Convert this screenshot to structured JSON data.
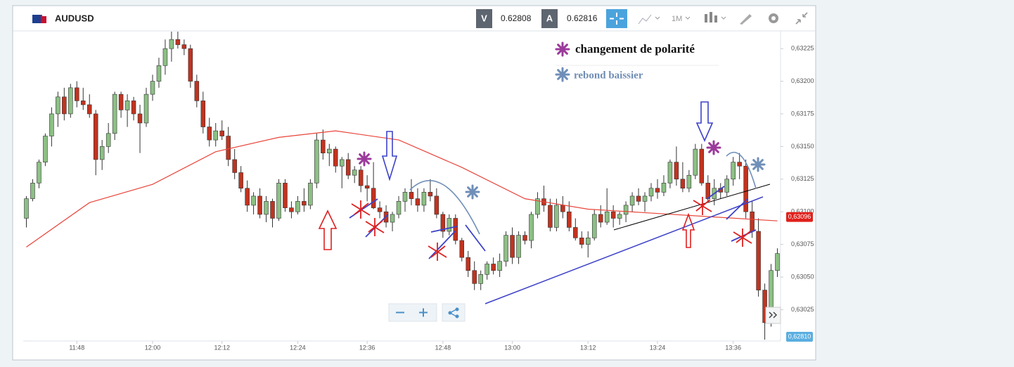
{
  "header": {
    "symbol": "AUDUSD",
    "bid_label": "V",
    "bid": 0.62808,
    "ask_label": "A",
    "ask": 0.62816,
    "timeframe": "1M"
  },
  "chart_data": {
    "type": "candlestick",
    "categories": [
      null,
      null,
      null,
      null,
      null,
      null,
      null,
      null,
      "11:48",
      null,
      null,
      null,
      null,
      null,
      null,
      null,
      null,
      null,
      null,
      null,
      "12:00",
      null,
      null,
      null,
      null,
      null,
      null,
      null,
      null,
      null,
      null,
      "12:12",
      null,
      null,
      null,
      null,
      null,
      null,
      null,
      null,
      null,
      null,
      null,
      "12:24",
      null,
      null,
      null,
      null,
      null,
      null,
      null,
      null,
      null,
      null,
      "12:36",
      null,
      null,
      null,
      null,
      null,
      null,
      null,
      null,
      null,
      null,
      null,
      "12:48",
      null,
      null,
      null,
      null,
      null,
      null,
      null,
      null,
      null,
      null,
      "13:00",
      null,
      null,
      null,
      null,
      null,
      null,
      null,
      null,
      null,
      null,
      null,
      "13:12",
      null,
      null,
      null,
      null,
      null,
      null,
      null,
      null,
      null,
      null,
      "13:24",
      null,
      null,
      null,
      null,
      null,
      null,
      null,
      null,
      null,
      null,
      null,
      "13:36",
      null,
      null,
      null,
      null,
      null,
      null,
      null
    ],
    "open": [
      0.63095,
      0.6311,
      0.63122,
      0.63138,
      0.63158,
      0.63175,
      0.63188,
      0.63175,
      0.63195,
      0.63185,
      0.63182,
      0.63175,
      0.6314,
      0.6315,
      0.6316,
      0.6319,
      0.63178,
      0.63185,
      0.63175,
      0.63168,
      0.6319,
      0.632,
      0.63212,
      0.63225,
      0.63232,
      0.63228,
      0.63225,
      0.632,
      0.63185,
      0.63165,
      0.63155,
      0.63162,
      0.63158,
      0.6314,
      0.6313,
      0.63118,
      0.63105,
      0.63112,
      0.63098,
      0.63108,
      0.63095,
      0.63122,
      0.63103,
      0.631,
      0.63108,
      0.63105,
      0.63122,
      0.63155,
      0.63145,
      0.63148,
      0.63135,
      0.6314,
      0.63128,
      0.63132,
      0.6312,
      0.63118,
      0.63103,
      0.631,
      0.63092,
      0.63098,
      0.63108,
      0.63115,
      0.6311,
      0.63105,
      0.63115,
      0.63112,
      0.63098,
      0.63085,
      0.63095,
      0.63078,
      0.63065,
      0.63055,
      0.63045,
      0.63052,
      0.6306,
      0.63055,
      0.63062,
      0.63082,
      0.63065,
      0.63082,
      0.63078,
      0.63098,
      0.6311,
      0.63105,
      0.63088,
      0.63105,
      0.631,
      0.63088,
      0.6308,
      0.63075,
      0.6308,
      0.63098,
      0.63092,
      0.631,
      0.63095,
      0.63098,
      0.63105,
      0.63112,
      0.63108,
      0.63112,
      0.63118,
      0.63115,
      0.63122,
      0.63138,
      0.63125,
      0.63118,
      0.63128,
      0.63148,
      0.63122,
      0.6311,
      0.63118,
      0.63115,
      0.63125,
      0.63138,
      0.63135,
      0.631,
      0.63085,
      0.6304,
      0.63015,
      0.63055
    ],
    "high": [
      0.63112,
      0.63125,
      0.6314,
      0.6316,
      0.6318,
      0.63192,
      0.63195,
      0.63198,
      0.632,
      0.63195,
      0.6319,
      0.63178,
      0.63155,
      0.63168,
      0.63192,
      0.63192,
      0.6319,
      0.63188,
      0.63182,
      0.63195,
      0.63205,
      0.63218,
      0.63232,
      0.63238,
      0.63238,
      0.63232,
      0.63228,
      0.63205,
      0.63192,
      0.63172,
      0.63168,
      0.6317,
      0.63165,
      0.63148,
      0.63135,
      0.63124,
      0.63115,
      0.63118,
      0.63112,
      0.6311,
      0.63125,
      0.63125,
      0.63108,
      0.63112,
      0.63118,
      0.63125,
      0.6316,
      0.63163,
      0.63152,
      0.6315,
      0.63142,
      0.63145,
      0.63135,
      0.63135,
      0.63128,
      0.63138,
      0.63108,
      0.63105,
      0.631,
      0.63112,
      0.63118,
      0.63125,
      0.63118,
      0.63118,
      0.63125,
      0.63118,
      0.631,
      0.63098,
      0.63098,
      0.6308,
      0.6307,
      0.63062,
      0.63055,
      0.63062,
      0.63065,
      0.63068,
      0.63085,
      0.63088,
      0.63085,
      0.63085,
      0.631,
      0.63115,
      0.6312,
      0.6311,
      0.6311,
      0.63112,
      0.63108,
      0.63095,
      0.63085,
      0.63085,
      0.63102,
      0.63105,
      0.63118,
      0.63105,
      0.631,
      0.63108,
      0.63115,
      0.63118,
      0.63115,
      0.63122,
      0.63125,
      0.63128,
      0.6314,
      0.6315,
      0.63138,
      0.63132,
      0.63152,
      0.63152,
      0.63128,
      0.63125,
      0.63122,
      0.63128,
      0.63142,
      0.63145,
      0.6314,
      0.63108,
      0.63095,
      0.63045,
      0.6306,
      0.63072
    ],
    "low": [
      0.63088,
      0.63108,
      0.63118,
      0.63135,
      0.6315,
      0.63165,
      0.6317,
      0.63172,
      0.6318,
      0.63178,
      0.63172,
      0.63128,
      0.63132,
      0.63145,
      0.63155,
      0.63172,
      0.63165,
      0.6317,
      0.63145,
      0.63165,
      0.63185,
      0.63195,
      0.63205,
      0.63215,
      0.63225,
      0.6322,
      0.63195,
      0.6318,
      0.6316,
      0.6315,
      0.6315,
      0.63155,
      0.63135,
      0.63125,
      0.63115,
      0.631,
      0.63098,
      0.63095,
      0.63092,
      0.63088,
      0.63093,
      0.631,
      0.63095,
      0.63098,
      0.631,
      0.63102,
      0.63118,
      0.6314,
      0.63135,
      0.6313,
      0.63118,
      0.63125,
      0.63122,
      0.63115,
      0.63108,
      0.63102,
      0.63095,
      0.63088,
      0.63085,
      0.63095,
      0.631,
      0.63105,
      0.631,
      0.631,
      0.63108,
      0.63095,
      0.6308,
      0.63082,
      0.63075,
      0.63062,
      0.6305,
      0.6304,
      0.6304,
      0.63048,
      0.63052,
      0.6305,
      0.63058,
      0.6306,
      0.6306,
      0.63075,
      0.63072,
      0.63095,
      0.631,
      0.63085,
      0.63085,
      0.63095,
      0.63085,
      0.63078,
      0.63072,
      0.63065,
      0.63078,
      0.63088,
      0.6309,
      0.63088,
      0.6309,
      0.63092,
      0.631,
      0.63105,
      0.631,
      0.63108,
      0.6311,
      0.63112,
      0.63118,
      0.6312,
      0.63115,
      0.63115,
      0.63125,
      0.6312,
      0.63108,
      0.63105,
      0.6311,
      0.63112,
      0.6312,
      0.63125,
      0.63095,
      0.6308,
      0.63035,
      0.63002,
      0.63012,
      0.6305
    ],
    "close": [
      0.6311,
      0.63122,
      0.63138,
      0.63158,
      0.63175,
      0.63188,
      0.63175,
      0.63195,
      0.63185,
      0.63182,
      0.63175,
      0.6314,
      0.6315,
      0.6316,
      0.6319,
      0.63178,
      0.63185,
      0.63175,
      0.63168,
      0.6319,
      0.632,
      0.63212,
      0.63225,
      0.63232,
      0.63228,
      0.63225,
      0.632,
      0.63185,
      0.63165,
      0.63155,
      0.63162,
      0.63158,
      0.6314,
      0.6313,
      0.63118,
      0.63105,
      0.63112,
      0.63098,
      0.63108,
      0.63095,
      0.63122,
      0.63103,
      0.631,
      0.63108,
      0.63105,
      0.63122,
      0.63155,
      0.63145,
      0.63148,
      0.63135,
      0.6314,
      0.63128,
      0.63132,
      0.6312,
      0.63118,
      0.63103,
      0.631,
      0.63092,
      0.63098,
      0.63108,
      0.63115,
      0.6311,
      0.63105,
      0.63115,
      0.63112,
      0.63098,
      0.63085,
      0.63095,
      0.63078,
      0.63065,
      0.63055,
      0.63045,
      0.63052,
      0.6306,
      0.63055,
      0.63062,
      0.63082,
      0.63065,
      0.63082,
      0.63078,
      0.63098,
      0.6311,
      0.63105,
      0.63088,
      0.63105,
      0.631,
      0.63088,
      0.6308,
      0.63075,
      0.6308,
      0.63098,
      0.63092,
      0.631,
      0.63095,
      0.63098,
      0.63105,
      0.63112,
      0.63108,
      0.63112,
      0.63118,
      0.63115,
      0.63122,
      0.63138,
      0.63125,
      0.63118,
      0.63128,
      0.63148,
      0.63122,
      0.6311,
      0.63118,
      0.63115,
      0.63125,
      0.63138,
      0.63135,
      0.631,
      0.63085,
      0.6304,
      0.63015,
      0.63055,
      0.63068
    ],
    "up_color": "#8cc084",
    "down_color": "#c1331f",
    "overlays": [
      {
        "type": "line",
        "color": "#e8443a",
        "x": [
          0,
          10,
          20,
          30,
          40,
          49,
          59,
          69,
          79,
          89,
          99,
          109,
          119
        ],
        "values": [
          0.63073,
          0.63107,
          0.63121,
          0.63146,
          0.63157,
          0.63162,
          0.63155,
          0.63134,
          0.6311,
          0.63102,
          0.63099,
          0.63096,
          0.63093
        ]
      }
    ],
    "ylim": [
      0.63001,
      0.63238
    ],
    "yticks": [
      {
        "value": 0.63025,
        "label": "0,63025"
      },
      {
        "value": 0.6305,
        "label": "0,63050"
      },
      {
        "value": 0.63075,
        "label": "0,63075"
      },
      {
        "value": 0.631,
        "label": "0,63100"
      },
      {
        "value": 0.63125,
        "label": "0,63125"
      },
      {
        "value": 0.6315,
        "label": "0,63150"
      },
      {
        "value": 0.63175,
        "label": "0,63175"
      },
      {
        "value": 0.632,
        "label": "0,63200"
      },
      {
        "value": 0.63225,
        "label": "0,63225"
      }
    ],
    "grid": false,
    "price_markers": [
      {
        "value": 0.63096,
        "label": "0,63096",
        "color": "#e0201b"
      },
      {
        "value": 0.6281,
        "label": "0,62810",
        "color": "#5aaee0"
      }
    ],
    "annotations": [
      {
        "text": "changement de polarité",
        "color": "#111111"
      },
      {
        "text": "rebond baissier",
        "color": "#6e8db5"
      }
    ]
  }
}
